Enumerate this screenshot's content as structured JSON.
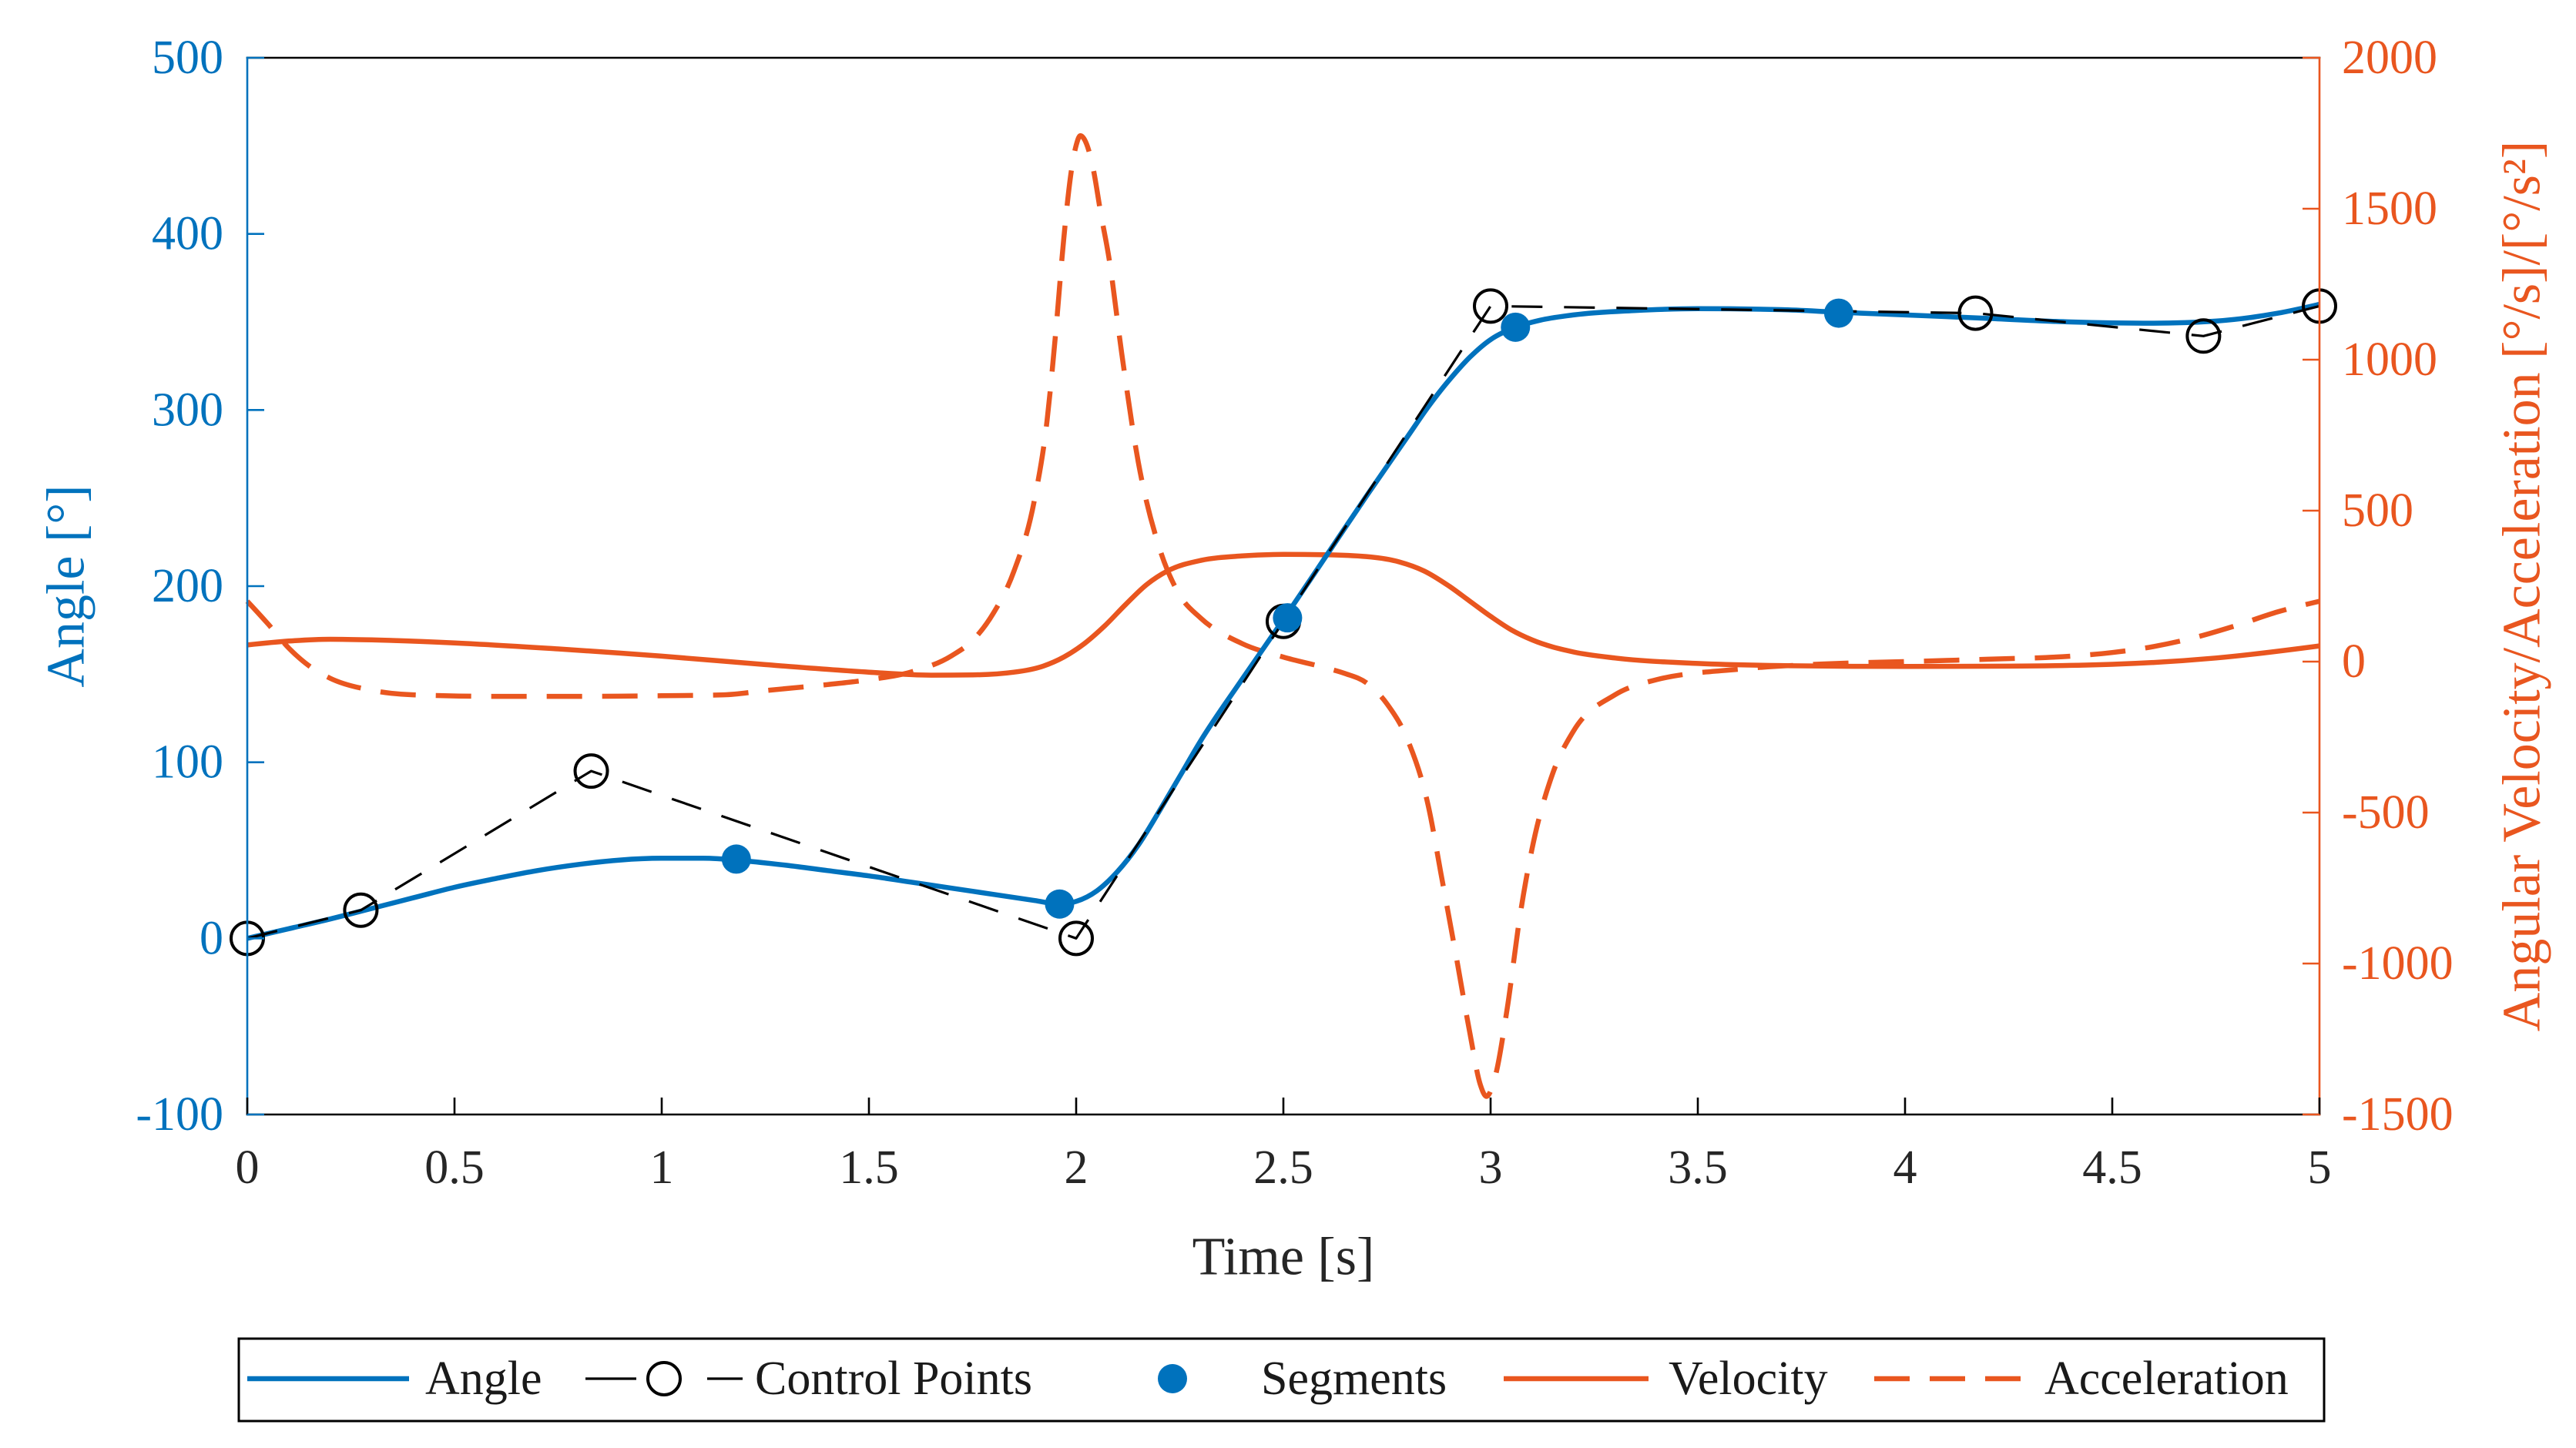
{
  "chart_data": {
    "type": "line",
    "xlabel": "Time [s]",
    "ylabel_left": "Angle [°]",
    "ylabel_right": "Angular Velocity/Acceleration [°/s]/[°/s²]",
    "xlim": [
      0,
      5
    ],
    "ylim_left": [
      -100,
      500
    ],
    "ylim_right": [
      -1500,
      2000
    ],
    "x_ticks": [
      0,
      0.5,
      1,
      1.5,
      2,
      2.5,
      3,
      3.5,
      4,
      4.5,
      5
    ],
    "y_left_ticks": [
      -100,
      0,
      100,
      200,
      300,
      400,
      500
    ],
    "y_right_ticks": [
      -1500,
      -1000,
      -500,
      0,
      500,
      1000,
      1500,
      2000
    ],
    "grid": false,
    "legend": {
      "placement": "bottom-outside"
    },
    "colors": {
      "axis_left": "#0072BD",
      "axis_right": "#E9561F",
      "frame": "#000000"
    },
    "series": [
      {
        "name": "Angle",
        "color": "#0072BD",
        "right_axis": false,
        "line": true,
        "dashed": false,
        "smooth": true,
        "open_circle_markers": false,
        "filled_markers": false,
        "x": [
          0,
          0.1,
          0.2,
          0.3,
          0.4,
          0.5,
          0.6,
          0.7,
          0.8,
          0.9,
          1.0,
          1.1,
          1.2,
          1.3,
          1.4,
          1.5,
          1.6,
          1.7,
          1.8,
          1.9,
          1.96,
          2.0,
          2.05,
          2.1,
          2.15,
          2.2,
          2.25,
          2.3,
          2.4,
          2.5,
          2.6,
          2.7,
          2.8,
          2.85,
          2.9,
          2.95,
          3.0,
          3.06,
          3.12,
          3.2,
          3.35,
          3.5,
          3.7,
          3.84,
          4.0,
          4.2,
          4.4,
          4.6,
          4.75,
          4.9,
          5.0
        ],
        "y": [
          0,
          5.5,
          11,
          17,
          23,
          29,
          34,
          38.5,
          42,
          44.5,
          45.5,
          45.5,
          44,
          41.5,
          38.5,
          35.5,
          32,
          28.5,
          25,
          21.5,
          19.5,
          21,
          27,
          38,
          53,
          72,
          92,
          112,
          147,
          181,
          216,
          251,
          285,
          302,
          317,
          330,
          340,
          347,
          351,
          354,
          356.5,
          357.5,
          357,
          355.5,
          354,
          352,
          350,
          349.3,
          350.5,
          355,
          360
        ]
      },
      {
        "name": "Control Points",
        "color": "#000000",
        "right_axis": false,
        "line": true,
        "dashed": true,
        "smooth": false,
        "open_circle_markers": true,
        "filled_markers": false,
        "x": [
          0,
          0.274,
          0.83,
          2.0,
          2.5,
          3.0,
          4.17,
          4.72,
          5.0
        ],
        "y": [
          0,
          16,
          95,
          0,
          180,
          359,
          355,
          342,
          359
        ]
      },
      {
        "name": "Segments",
        "color": "#0072BD",
        "right_axis": false,
        "line": false,
        "dashed": false,
        "smooth": false,
        "open_circle_markers": false,
        "filled_markers": true,
        "x": [
          1.18,
          1.96,
          2.51,
          3.06,
          3.84
        ],
        "y": [
          45,
          19.5,
          182,
          347,
          355
        ]
      },
      {
        "name": "Velocity",
        "color": "#E9561F",
        "right_axis": true,
        "line": true,
        "dashed": false,
        "smooth": true,
        "open_circle_markers": false,
        "filled_markers": false,
        "x": [
          0,
          0.1,
          0.2,
          0.3,
          0.5,
          0.75,
          1.0,
          1.25,
          1.5,
          1.65,
          1.75,
          1.85,
          1.92,
          1.97,
          2.02,
          2.07,
          2.12,
          2.17,
          2.22,
          2.3,
          2.4,
          2.5,
          2.6,
          2.7,
          2.78,
          2.84,
          2.9,
          2.95,
          3.0,
          3.05,
          3.1,
          3.2,
          3.3,
          3.5,
          3.75,
          4.0,
          4.25,
          4.5,
          4.75,
          5.0
        ],
        "y": [
          55,
          68,
          74,
          72,
          62,
          42,
          18,
          -10,
          -35,
          -45,
          -44,
          -35,
          -15,
          15,
          60,
          120,
          190,
          255,
          300,
          335,
          350,
          355,
          354,
          348,
          330,
          300,
          250,
          200,
          150,
          105,
          72,
          32,
          12,
          -6,
          -14,
          -16,
          -15,
          -9,
          12,
          52
        ]
      },
      {
        "name": "Acceleration",
        "color": "#E9561F",
        "right_axis": true,
        "line": true,
        "dashed": true,
        "smooth": true,
        "open_circle_markers": false,
        "filled_markers": false,
        "x": [
          0,
          0.05,
          0.1,
          0.15,
          0.2,
          0.3,
          0.4,
          0.6,
          0.8,
          1.0,
          1.15,
          1.25,
          1.4,
          1.5,
          1.6,
          1.7,
          1.75,
          1.8,
          1.85,
          1.9,
          1.93,
          1.95,
          1.97,
          1.99,
          2.0,
          2.01,
          2.025,
          2.04,
          2.06,
          2.08,
          2.11,
          2.15,
          2.2,
          2.25,
          2.3,
          2.4,
          2.5,
          2.6,
          2.65,
          2.7,
          2.75,
          2.8,
          2.85,
          2.88,
          2.92,
          2.95,
          2.975,
          2.99,
          3.01,
          3.04,
          3.07,
          3.1,
          3.15,
          3.2,
          3.3,
          3.4,
          3.6,
          3.8,
          4.0,
          4.2,
          4.4,
          4.5,
          4.6,
          4.7,
          4.8,
          4.9,
          5.0
        ],
        "y": [
          200,
          125,
          45,
          -15,
          -55,
          -95,
          -110,
          -115,
          -115,
          -113,
          -110,
          -96,
          -76,
          -60,
          -35,
          20,
          70,
          160,
          300,
          540,
          800,
          1080,
          1400,
          1640,
          1710,
          1742,
          1715,
          1640,
          1480,
          1330,
          1020,
          660,
          380,
          220,
          145,
          60,
          15,
          -20,
          -40,
          -70,
          -140,
          -260,
          -480,
          -700,
          -1000,
          -1230,
          -1400,
          -1440,
          -1380,
          -1150,
          -850,
          -620,
          -370,
          -230,
          -110,
          -60,
          -25,
          -8,
          0,
          8,
          18,
          30,
          50,
          80,
          120,
          165,
          200
        ]
      }
    ]
  }
}
